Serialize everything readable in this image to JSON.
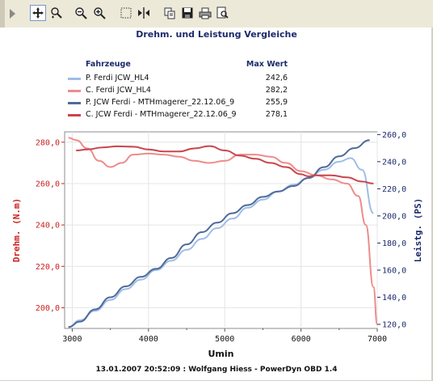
{
  "toolbar": {
    "tools": [
      {
        "name": "pan-tool",
        "icon": "move-arrows-icon"
      },
      {
        "name": "zoom-region-tool",
        "icon": "zoom-region-icon"
      },
      {
        "name": "zoom-out-tool",
        "icon": "magnifier-minus-icon"
      },
      {
        "name": "zoom-in-tool",
        "icon": "magnifier-plus-icon"
      },
      {
        "name": "select-tool",
        "icon": "dotted-rect-icon"
      },
      {
        "name": "cursor-tool",
        "icon": "cursor-line-icon"
      },
      {
        "name": "copy-tool",
        "icon": "copy-icon"
      },
      {
        "name": "save-tool",
        "icon": "floppy-icon"
      },
      {
        "name": "print-tool",
        "icon": "printer-icon"
      },
      {
        "name": "print-preview-tool",
        "icon": "print-preview-icon"
      }
    ]
  },
  "legend": {
    "col_vehicle": "Fahrzeuge",
    "col_max": "Max Wert",
    "entries": [
      {
        "name": "P. Ferdi JCW_HL4",
        "max": "242,6",
        "color": "#9fbde6"
      },
      {
        "name": "C. Ferdi JCW_HL4",
        "max": "282,2",
        "color": "#ee8c8c"
      },
      {
        "name": "P. JCW Ferdi - MTHmagerer_22.12.06_9",
        "max": "255,9",
        "color": "#4f6b9a"
      },
      {
        "name": "C. JCW Ferdi - MTHmagerer_22.12.06_9",
        "max": "278,1",
        "color": "#c9454d"
      }
    ]
  },
  "footer": "13.01.2007 20:52:09 : Wolfgang Hiess - PowerDyn OBD 1.4",
  "chart_data": {
    "type": "line",
    "title": "Drehm. und Leistung Vergleiche",
    "xlabel": "Umin",
    "ylabel_left": "Drehm. (N.m)",
    "ylabel_right": "Leistg. (PS)",
    "xlim": [
      2900,
      7000
    ],
    "ylim_left": [
      190,
      285
    ],
    "ylim_right": [
      117,
      262
    ],
    "x_ticks": [
      3000,
      4000,
      5000,
      6000,
      7000
    ],
    "y_left_ticks": [
      "200,0",
      "220,0",
      "240,0",
      "260,0",
      "280,0"
    ],
    "y_left_tick_values": [
      200,
      220,
      240,
      260,
      280
    ],
    "y_right_ticks": [
      "120,0",
      "140,0",
      "160,0",
      "180,0",
      "200,0",
      "220,0",
      "240,0",
      "260,0"
    ],
    "y_right_tick_values": [
      120,
      140,
      160,
      180,
      200,
      220,
      240,
      260
    ],
    "left_axis_color": "#cc2222",
    "right_axis_color": "#1b2a6b",
    "grid": true,
    "series": [
      {
        "name": "P. Ferdi JCW_HL4",
        "axis": "right",
        "color": "#9fbde6",
        "x": [
          2950,
          3100,
          3300,
          3500,
          3700,
          3900,
          4100,
          4300,
          4500,
          4700,
          4900,
          5100,
          5300,
          5500,
          5700,
          5900,
          6100,
          6300,
          6500,
          6650,
          6800,
          6950
        ],
        "y": [
          118,
          123,
          130,
          138,
          146,
          153,
          160,
          167,
          175,
          183,
          191,
          198,
          206,
          212,
          218,
          223,
          228,
          234,
          240,
          242.6,
          234,
          202
        ]
      },
      {
        "name": "C. Ferdi JCW_HL4",
        "axis": "left",
        "color": "#ee8c8c",
        "x": [
          2950,
          3050,
          3200,
          3350,
          3500,
          3650,
          3800,
          4000,
          4200,
          4400,
          4600,
          4800,
          5000,
          5200,
          5400,
          5600,
          5800,
          6000,
          6200,
          6400,
          6600,
          6750,
          6850,
          6950,
          7000
        ],
        "y": [
          282.2,
          281,
          277,
          271,
          268,
          270,
          274,
          274.5,
          274,
          273,
          271,
          270,
          271,
          274,
          274,
          273,
          270,
          266,
          264,
          262,
          260,
          254,
          240,
          210,
          192
        ]
      },
      {
        "name": "P. JCW Ferdi - MTHmagerer_22.12.06_9",
        "axis": "right",
        "color": "#4f6b9a",
        "x": [
          2950,
          3100,
          3300,
          3500,
          3700,
          3900,
          4100,
          4300,
          4500,
          4700,
          4900,
          5100,
          5300,
          5500,
          5700,
          5900,
          6100,
          6300,
          6500,
          6700,
          6900
        ],
        "y": [
          118,
          122,
          131,
          140,
          148,
          155,
          161,
          169,
          179,
          188,
          195,
          202,
          208,
          214,
          218,
          222,
          228,
          236,
          244,
          250,
          255.9
        ]
      },
      {
        "name": "C. JCW Ferdi - MTHmagerer_22.12.06_9",
        "axis": "left",
        "color": "#c9454d",
        "x": [
          3050,
          3200,
          3400,
          3600,
          3800,
          4000,
          4200,
          4400,
          4600,
          4800,
          5000,
          5200,
          5400,
          5600,
          5800,
          6000,
          6100,
          6200,
          6400,
          6600,
          6800,
          6950
        ],
        "y": [
          276,
          276.5,
          277.5,
          278,
          277.8,
          276.5,
          275.5,
          275.5,
          277,
          278.1,
          276,
          273.5,
          272,
          270,
          268,
          264.5,
          263.5,
          264,
          264,
          263,
          261,
          260
        ]
      }
    ]
  }
}
